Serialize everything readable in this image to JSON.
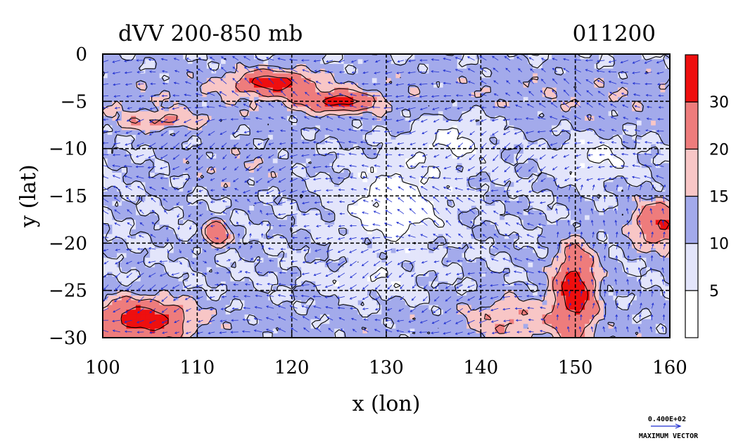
{
  "chart_data": {
    "type": "heatmap",
    "title": "dVV 200-850 mb",
    "date_label": "011200",
    "xlabel": "x (lon)",
    "ylabel": "y (lat)",
    "xlim": [
      100,
      160
    ],
    "ylim": [
      -30,
      0
    ],
    "x_ticks": [
      "100",
      "110",
      "120",
      "130",
      "140",
      "150",
      "160"
    ],
    "y_ticks": [
      "0",
      "−5",
      "−10",
      "−15",
      "−20",
      "−25",
      "−30"
    ],
    "x_tick_values": [
      100,
      110,
      120,
      130,
      140,
      150,
      160
    ],
    "y_tick_values": [
      0,
      -5,
      -10,
      -15,
      -20,
      -25,
      -30
    ],
    "grid": true,
    "colorbar": {
      "levels": [
        "5",
        "10",
        "15",
        "20",
        "30"
      ],
      "level_values": [
        5,
        10,
        15,
        20,
        30
      ],
      "colors": [
        "#ffffff",
        "#e3e5fb",
        "#a3aaeb",
        "#f8c6c6",
        "#ee7c7c",
        "#ee0f0f"
      ]
    },
    "vector_legend": {
      "value": "0.400E+02",
      "label": "MAXIMUM VECTOR"
    },
    "vector_color": "#1f2fd0",
    "high_regions": [
      {
        "lon": 118,
        "lat": -3,
        "value": 30
      },
      {
        "lon": 125,
        "lat": -5,
        "value": 30
      },
      {
        "lon": 104,
        "lat": -28,
        "value": 30
      },
      {
        "lon": 150,
        "lat": -25,
        "value": 30
      },
      {
        "lon": 159,
        "lat": -18,
        "value": 30
      },
      {
        "lon": 112,
        "lat": -19,
        "value": 30
      }
    ]
  }
}
